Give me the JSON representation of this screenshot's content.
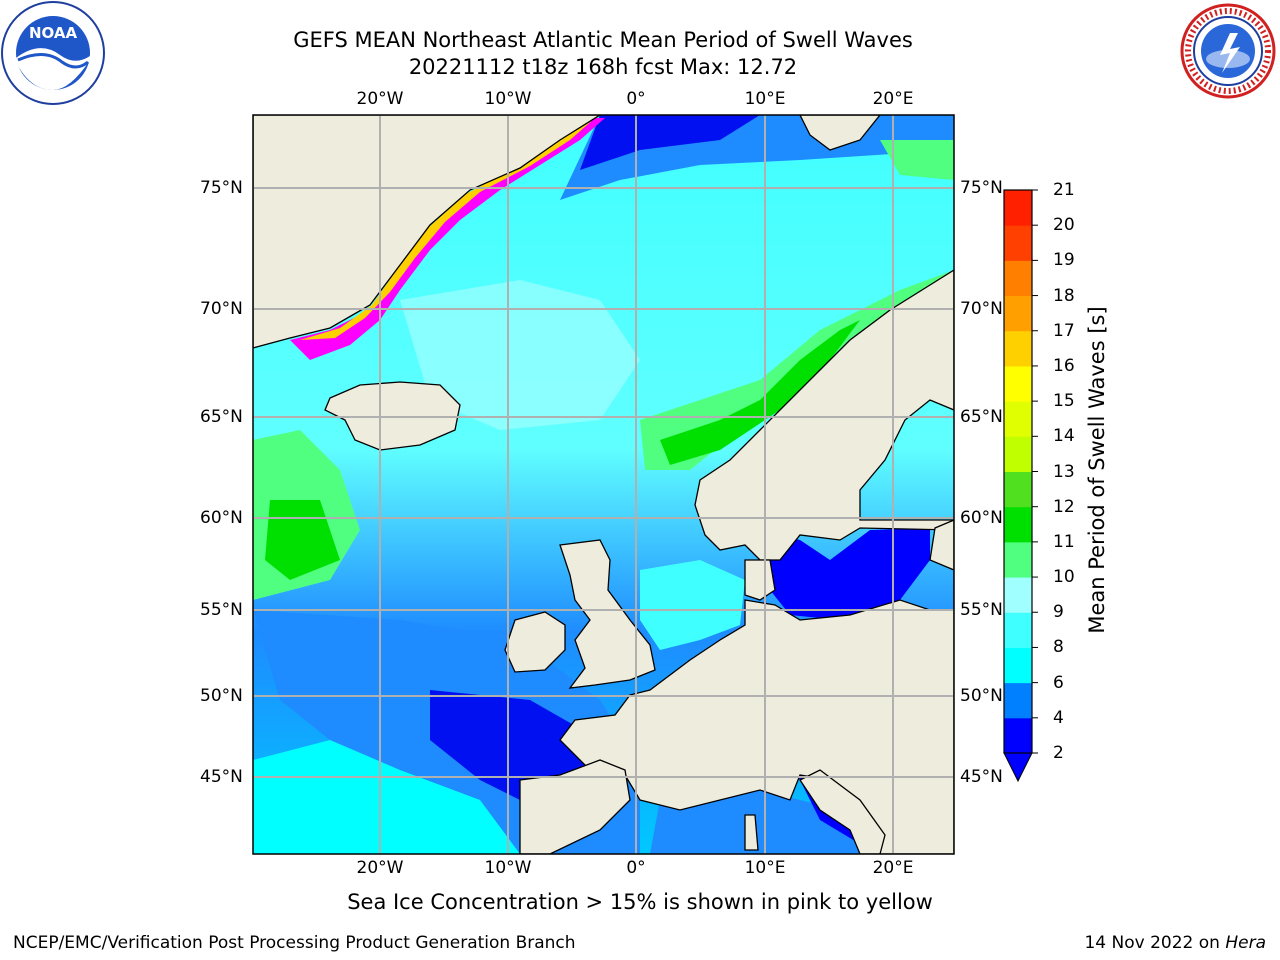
{
  "title_line1": "GEFS MEAN Northeast Atlantic Mean Period of Swell Waves",
  "title_line2": "20221112 t18z 168h fcst   Max: 12.72",
  "logos": {
    "left": "noaa-logo",
    "right": "national-weather-service-logo"
  },
  "map": {
    "longitude_ticks": [
      "20°W",
      "10°W",
      "0°",
      "10°E",
      "20°E"
    ],
    "latitude_ticks": [
      "75°N",
      "70°N",
      "65°N",
      "60°N",
      "55°N",
      "50°N",
      "45°N"
    ],
    "colors": {
      "land": "#eeecdc",
      "coast": "#000000",
      "grid": "#b0b0b0",
      "ice": "#ff00ff"
    }
  },
  "colorbar": {
    "title": "Mean Period of Swell Waves [s]",
    "labels": [
      "2",
      "4",
      "6",
      "8",
      "9",
      "10",
      "11",
      "12",
      "13",
      "14",
      "15",
      "16",
      "17",
      "18",
      "19",
      "20",
      "21"
    ],
    "colors": [
      "#0000ff",
      "#0080ff",
      "#00ffff",
      "#40ffff",
      "#a0ffff",
      "#50ff80",
      "#00e000",
      "#50e020",
      "#c0ff00",
      "#e0ff00",
      "#ffff00",
      "#ffd000",
      "#ffa000",
      "#ff8000",
      "#ff4000",
      "#ff2000"
    ],
    "extend": "min"
  },
  "caption": "Sea Ice Concentration > 15% is shown in pink to yellow",
  "footer": {
    "left": "NCEP/EMC/Verification Post Processing Product Generation Branch",
    "right_prefix": "14 Nov 2022 on",
    "right_machine": "Hera"
  }
}
